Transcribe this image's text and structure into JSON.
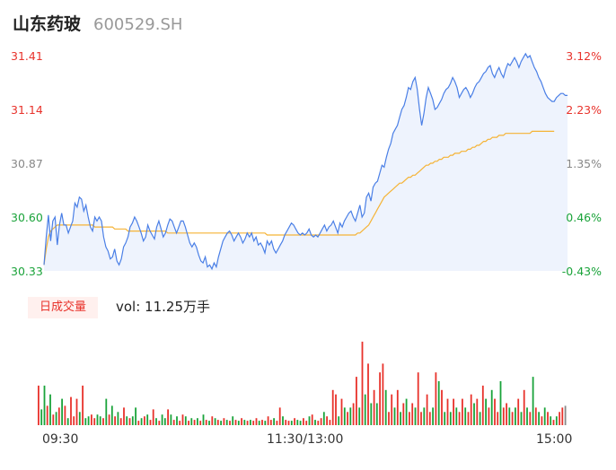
{
  "header": {
    "stock_name": "山东药玻",
    "stock_code": "600529.SH"
  },
  "volume": {
    "badge": "日成交量",
    "label": "vol: 11.25万手"
  },
  "colors": {
    "price_line": "#4a7fe6",
    "avg_line": "#f5b335",
    "up": "#e8322b",
    "down": "#1aa33a",
    "flat": "#888888",
    "area_fill": "#eef3fd"
  },
  "chart_data": {
    "type": "line",
    "price_axis": {
      "labels": [
        "31.41",
        "31.14",
        "30.87",
        "30.60",
        "30.33"
      ],
      "ylim": [
        30.33,
        31.41
      ]
    },
    "percent_axis": {
      "labels": [
        "3.12%",
        "2.23%",
        "1.35%",
        "0.46%",
        "-0.43%"
      ]
    },
    "time_labels": [
      "09:30",
      "11:30/13:00",
      "15:00"
    ],
    "price": [
      30.36,
      30.5,
      30.61,
      30.48,
      30.58,
      30.6,
      30.46,
      30.56,
      30.62,
      30.56,
      30.56,
      30.52,
      30.55,
      30.58,
      30.67,
      30.65,
      30.7,
      30.69,
      30.63,
      30.66,
      30.6,
      30.55,
      30.53,
      30.6,
      30.58,
      30.6,
      30.58,
      30.5,
      30.45,
      30.43,
      30.39,
      30.4,
      30.44,
      30.38,
      30.36,
      30.39,
      30.45,
      30.47,
      30.5,
      30.55,
      30.57,
      30.6,
      30.58,
      30.55,
      30.52,
      30.48,
      30.5,
      30.56,
      30.53,
      30.51,
      30.49,
      30.55,
      30.58,
      30.54,
      30.5,
      30.52,
      30.56,
      30.59,
      30.58,
      30.55,
      30.52,
      30.55,
      30.58,
      30.58,
      30.55,
      30.51,
      30.47,
      30.45,
      30.47,
      30.45,
      30.41,
      30.38,
      30.37,
      30.4,
      30.35,
      30.36,
      30.34,
      30.37,
      30.35,
      30.4,
      30.44,
      30.48,
      30.5,
      30.52,
      30.53,
      30.51,
      30.48,
      30.5,
      30.52,
      30.5,
      30.47,
      30.49,
      30.52,
      30.5,
      30.52,
      30.48,
      30.5,
      30.46,
      30.47,
      30.45,
      30.42,
      30.48,
      30.46,
      30.48,
      30.44,
      30.42,
      30.44,
      30.46,
      30.48,
      30.51,
      30.53,
      30.55,
      30.57,
      30.56,
      30.54,
      30.52,
      30.51,
      30.52,
      30.51,
      30.52,
      30.54,
      30.51,
      30.5,
      30.51,
      30.5,
      30.52,
      30.54,
      30.56,
      30.53,
      30.55,
      30.56,
      30.58,
      30.55,
      30.52,
      30.57,
      30.55,
      30.58,
      30.6,
      30.62,
      30.63,
      30.6,
      30.58,
      30.62,
      30.66,
      30.6,
      30.62,
      30.7,
      30.72,
      30.68,
      30.75,
      30.77,
      30.78,
      30.82,
      30.86,
      30.85,
      30.9,
      30.94,
      30.97,
      31.02,
      31.04,
      31.06,
      31.1,
      31.14,
      31.16,
      31.2,
      31.25,
      31.24,
      31.28,
      31.3,
      31.24,
      31.14,
      31.06,
      31.12,
      31.2,
      31.25,
      31.22,
      31.19,
      31.14,
      31.15,
      31.17,
      31.19,
      31.22,
      31.24,
      31.25,
      31.27,
      31.3,
      31.28,
      31.25,
      31.2,
      31.22,
      31.24,
      31.25,
      31.23,
      31.2,
      31.22,
      31.25,
      31.27,
      31.28,
      31.3,
      31.32,
      31.33,
      31.35,
      31.36,
      31.32,
      31.3,
      31.33,
      31.35,
      31.32,
      31.3,
      31.34,
      31.37,
      31.36,
      31.38,
      31.4,
      31.38,
      31.35,
      31.38,
      31.4,
      31.42,
      31.4,
      31.41,
      31.38,
      31.35,
      31.33,
      31.3,
      31.28,
      31.25,
      31.22,
      31.2,
      31.19,
      31.18,
      31.18,
      31.2,
      31.21,
      31.22,
      31.22,
      31.21,
      31.21
    ],
    "average": [
      30.36,
      30.44,
      30.5,
      30.53,
      30.54,
      30.55,
      30.56,
      30.56,
      30.56,
      30.56,
      30.56,
      30.56,
      30.56,
      30.56,
      30.56,
      30.56,
      30.56,
      30.56,
      30.56,
      30.56,
      30.56,
      30.56,
      30.56,
      30.55,
      30.55,
      30.55,
      30.55,
      30.55,
      30.55,
      30.55,
      30.55,
      30.55,
      30.54,
      30.54,
      30.54,
      30.54,
      30.54,
      30.54,
      30.53,
      30.53,
      30.53,
      30.53,
      30.53,
      30.53,
      30.53,
      30.53,
      30.53,
      30.53,
      30.53,
      30.53,
      30.53,
      30.53,
      30.53,
      30.53,
      30.53,
      30.53,
      30.52,
      30.52,
      30.52,
      30.52,
      30.52,
      30.52,
      30.52,
      30.52,
      30.52,
      30.52,
      30.52,
      30.52,
      30.52,
      30.52,
      30.52,
      30.52,
      30.52,
      30.52,
      30.52,
      30.52,
      30.52,
      30.52,
      30.52,
      30.52,
      30.52,
      30.52,
      30.52,
      30.52,
      30.52,
      30.52,
      30.52,
      30.52,
      30.52,
      30.52,
      30.52,
      30.52,
      30.52,
      30.52,
      30.52,
      30.52,
      30.52,
      30.52,
      30.52,
      30.52,
      30.52,
      30.51,
      30.51,
      30.51,
      30.51,
      30.51,
      30.51,
      30.51,
      30.51,
      30.51,
      30.51,
      30.51,
      30.51,
      30.51,
      30.51,
      30.51,
      30.51,
      30.51,
      30.51,
      30.51,
      30.51,
      30.51,
      30.51,
      30.51,
      30.51,
      30.51,
      30.51,
      30.51,
      30.51,
      30.51,
      30.51,
      30.51,
      30.51,
      30.51,
      30.51,
      30.51,
      30.51,
      30.51,
      30.51,
      30.51,
      30.51,
      30.51,
      30.52,
      30.52,
      30.53,
      30.54,
      30.55,
      30.56,
      30.58,
      30.6,
      30.62,
      30.64,
      30.66,
      30.68,
      30.7,
      30.71,
      30.72,
      30.73,
      30.74,
      30.75,
      30.76,
      30.77,
      30.77,
      30.78,
      30.79,
      30.8,
      30.8,
      30.81,
      30.81,
      30.82,
      30.83,
      30.84,
      30.85,
      30.86,
      30.86,
      30.87,
      30.87,
      30.88,
      30.88,
      30.89,
      30.89,
      30.9,
      30.9,
      30.9,
      30.91,
      30.91,
      30.92,
      30.92,
      30.92,
      30.93,
      30.93,
      30.93,
      30.94,
      30.94,
      30.95,
      30.95,
      30.96,
      30.96,
      30.97,
      30.98,
      30.98,
      30.99,
      30.99,
      31.0,
      31.0,
      31.0,
      31.01,
      31.01,
      31.01,
      31.02,
      31.02,
      31.02,
      31.02,
      31.02,
      31.02,
      31.02,
      31.02,
      31.02,
      31.02,
      31.02,
      31.02,
      31.03,
      31.03,
      31.03,
      31.03,
      31.03,
      31.03,
      31.03,
      31.03,
      31.03,
      31.03,
      31.03
    ],
    "volume": [
      {
        "v": 0.45,
        "d": "up"
      },
      {
        "v": 0.18,
        "d": "down"
      },
      {
        "v": 0.45,
        "d": "down"
      },
      {
        "v": 0.22,
        "d": "up"
      },
      {
        "v": 0.35,
        "d": "down"
      },
      {
        "v": 0.12,
        "d": "up"
      },
      {
        "v": 0.15,
        "d": "down"
      },
      {
        "v": 0.2,
        "d": "up"
      },
      {
        "v": 0.3,
        "d": "down"
      },
      {
        "v": 0.22,
        "d": "up"
      },
      {
        "v": 0.08,
        "d": "down"
      },
      {
        "v": 0.32,
        "d": "up"
      },
      {
        "v": 0.1,
        "d": "up"
      },
      {
        "v": 0.3,
        "d": "up"
      },
      {
        "v": 0.15,
        "d": "down"
      },
      {
        "v": 0.45,
        "d": "up"
      },
      {
        "v": 0.08,
        "d": "down"
      },
      {
        "v": 0.1,
        "d": "down"
      },
      {
        "v": 0.12,
        "d": "up"
      },
      {
        "v": 0.08,
        "d": "up"
      },
      {
        "v": 0.12,
        "d": "down"
      },
      {
        "v": 0.1,
        "d": "down"
      },
      {
        "v": 0.08,
        "d": "up"
      },
      {
        "v": 0.3,
        "d": "down"
      },
      {
        "v": 0.12,
        "d": "up"
      },
      {
        "v": 0.22,
        "d": "down"
      },
      {
        "v": 0.1,
        "d": "up"
      },
      {
        "v": 0.15,
        "d": "down"
      },
      {
        "v": 0.08,
        "d": "up"
      },
      {
        "v": 0.2,
        "d": "up"
      },
      {
        "v": 0.1,
        "d": "down"
      },
      {
        "v": 0.08,
        "d": "up"
      },
      {
        "v": 0.1,
        "d": "down"
      },
      {
        "v": 0.2,
        "d": "down"
      },
      {
        "v": 0.05,
        "d": "up"
      },
      {
        "v": 0.08,
        "d": "down"
      },
      {
        "v": 0.1,
        "d": "up"
      },
      {
        "v": 0.12,
        "d": "down"
      },
      {
        "v": 0.06,
        "d": "up"
      },
      {
        "v": 0.18,
        "d": "up"
      },
      {
        "v": 0.08,
        "d": "down"
      },
      {
        "v": 0.05,
        "d": "up"
      },
      {
        "v": 0.12,
        "d": "down"
      },
      {
        "v": 0.08,
        "d": "down"
      },
      {
        "v": 0.18,
        "d": "up"
      },
      {
        "v": 0.12,
        "d": "down"
      },
      {
        "v": 0.06,
        "d": "up"
      },
      {
        "v": 0.1,
        "d": "down"
      },
      {
        "v": 0.05,
        "d": "up"
      },
      {
        "v": 0.12,
        "d": "up"
      },
      {
        "v": 0.1,
        "d": "down"
      },
      {
        "v": 0.05,
        "d": "up"
      },
      {
        "v": 0.08,
        "d": "down"
      },
      {
        "v": 0.06,
        "d": "up"
      },
      {
        "v": 0.08,
        "d": "down"
      },
      {
        "v": 0.05,
        "d": "up"
      },
      {
        "v": 0.12,
        "d": "down"
      },
      {
        "v": 0.06,
        "d": "up"
      },
      {
        "v": 0.05,
        "d": "down"
      },
      {
        "v": 0.1,
        "d": "up"
      },
      {
        "v": 0.08,
        "d": "down"
      },
      {
        "v": 0.06,
        "d": "up"
      },
      {
        "v": 0.05,
        "d": "down"
      },
      {
        "v": 0.08,
        "d": "up"
      },
      {
        "v": 0.06,
        "d": "down"
      },
      {
        "v": 0.05,
        "d": "up"
      },
      {
        "v": 0.1,
        "d": "down"
      },
      {
        "v": 0.06,
        "d": "up"
      },
      {
        "v": 0.05,
        "d": "down"
      },
      {
        "v": 0.08,
        "d": "up"
      },
      {
        "v": 0.06,
        "d": "down"
      },
      {
        "v": 0.05,
        "d": "up"
      },
      {
        "v": 0.06,
        "d": "down"
      },
      {
        "v": 0.05,
        "d": "up"
      },
      {
        "v": 0.08,
        "d": "up"
      },
      {
        "v": 0.05,
        "d": "down"
      },
      {
        "v": 0.06,
        "d": "up"
      },
      {
        "v": 0.05,
        "d": "down"
      },
      {
        "v": 0.1,
        "d": "up"
      },
      {
        "v": 0.06,
        "d": "up"
      },
      {
        "v": 0.08,
        "d": "down"
      },
      {
        "v": 0.05,
        "d": "up"
      },
      {
        "v": 0.2,
        "d": "up"
      },
      {
        "v": 0.1,
        "d": "down"
      },
      {
        "v": 0.06,
        "d": "up"
      },
      {
        "v": 0.05,
        "d": "up"
      },
      {
        "v": 0.05,
        "d": "down"
      },
      {
        "v": 0.08,
        "d": "up"
      },
      {
        "v": 0.06,
        "d": "down"
      },
      {
        "v": 0.05,
        "d": "down"
      },
      {
        "v": 0.08,
        "d": "up"
      },
      {
        "v": 0.05,
        "d": "up"
      },
      {
        "v": 0.1,
        "d": "down"
      },
      {
        "v": 0.12,
        "d": "up"
      },
      {
        "v": 0.06,
        "d": "down"
      },
      {
        "v": 0.05,
        "d": "up"
      },
      {
        "v": 0.08,
        "d": "up"
      },
      {
        "v": 0.15,
        "d": "down"
      },
      {
        "v": 0.1,
        "d": "up"
      },
      {
        "v": 0.06,
        "d": "up"
      },
      {
        "v": 0.4,
        "d": "up"
      },
      {
        "v": 0.35,
        "d": "up"
      },
      {
        "v": 0.1,
        "d": "down"
      },
      {
        "v": 0.3,
        "d": "up"
      },
      {
        "v": 0.2,
        "d": "down"
      },
      {
        "v": 0.15,
        "d": "up"
      },
      {
        "v": 0.2,
        "d": "down"
      },
      {
        "v": 0.25,
        "d": "up"
      },
      {
        "v": 0.55,
        "d": "up"
      },
      {
        "v": 0.2,
        "d": "down"
      },
      {
        "v": 0.95,
        "d": "up"
      },
      {
        "v": 0.35,
        "d": "down"
      },
      {
        "v": 0.7,
        "d": "up"
      },
      {
        "v": 0.25,
        "d": "down"
      },
      {
        "v": 0.4,
        "d": "up"
      },
      {
        "v": 0.25,
        "d": "down"
      },
      {
        "v": 0.6,
        "d": "up"
      },
      {
        "v": 0.7,
        "d": "up"
      },
      {
        "v": 0.4,
        "d": "down"
      },
      {
        "v": 0.15,
        "d": "up"
      },
      {
        "v": 0.35,
        "d": "up"
      },
      {
        "v": 0.2,
        "d": "down"
      },
      {
        "v": 0.4,
        "d": "up"
      },
      {
        "v": 0.15,
        "d": "down"
      },
      {
        "v": 0.25,
        "d": "up"
      },
      {
        "v": 0.3,
        "d": "down"
      },
      {
        "v": 0.15,
        "d": "up"
      },
      {
        "v": 0.25,
        "d": "up"
      },
      {
        "v": 0.2,
        "d": "down"
      },
      {
        "v": 0.6,
        "d": "up"
      },
      {
        "v": 0.15,
        "d": "up"
      },
      {
        "v": 0.2,
        "d": "down"
      },
      {
        "v": 0.35,
        "d": "up"
      },
      {
        "v": 0.15,
        "d": "up"
      },
      {
        "v": 0.2,
        "d": "down"
      },
      {
        "v": 0.6,
        "d": "up"
      },
      {
        "v": 0.5,
        "d": "down"
      },
      {
        "v": 0.4,
        "d": "up"
      },
      {
        "v": 0.15,
        "d": "down"
      },
      {
        "v": 0.3,
        "d": "up"
      },
      {
        "v": 0.15,
        "d": "down"
      },
      {
        "v": 0.3,
        "d": "up"
      },
      {
        "v": 0.2,
        "d": "down"
      },
      {
        "v": 0.15,
        "d": "up"
      },
      {
        "v": 0.3,
        "d": "up"
      },
      {
        "v": 0.2,
        "d": "down"
      },
      {
        "v": 0.15,
        "d": "up"
      },
      {
        "v": 0.35,
        "d": "up"
      },
      {
        "v": 0.25,
        "d": "down"
      },
      {
        "v": 0.3,
        "d": "up"
      },
      {
        "v": 0.15,
        "d": "down"
      },
      {
        "v": 0.45,
        "d": "up"
      },
      {
        "v": 0.3,
        "d": "down"
      },
      {
        "v": 0.2,
        "d": "up"
      },
      {
        "v": 0.4,
        "d": "down"
      },
      {
        "v": 0.3,
        "d": "up"
      },
      {
        "v": 0.15,
        "d": "up"
      },
      {
        "v": 0.5,
        "d": "down"
      },
      {
        "v": 0.2,
        "d": "up"
      },
      {
        "v": 0.25,
        "d": "up"
      },
      {
        "v": 0.2,
        "d": "down"
      },
      {
        "v": 0.15,
        "d": "up"
      },
      {
        "v": 0.2,
        "d": "down"
      },
      {
        "v": 0.3,
        "d": "up"
      },
      {
        "v": 0.15,
        "d": "down"
      },
      {
        "v": 0.4,
        "d": "up"
      },
      {
        "v": 0.2,
        "d": "down"
      },
      {
        "v": 0.15,
        "d": "up"
      },
      {
        "v": 0.55,
        "d": "down"
      },
      {
        "v": 0.2,
        "d": "up"
      },
      {
        "v": 0.15,
        "d": "down"
      },
      {
        "v": 0.1,
        "d": "up"
      },
      {
        "v": 0.2,
        "d": "down"
      },
      {
        "v": 0.15,
        "d": "up"
      },
      {
        "v": 0.1,
        "d": "down"
      },
      {
        "v": 0.06,
        "d": "up"
      },
      {
        "v": 0.1,
        "d": "down"
      },
      {
        "v": 0.15,
        "d": "up"
      },
      {
        "v": 0.2,
        "d": "up"
      },
      {
        "v": 0.22,
        "d": "flat"
      }
    ]
  }
}
